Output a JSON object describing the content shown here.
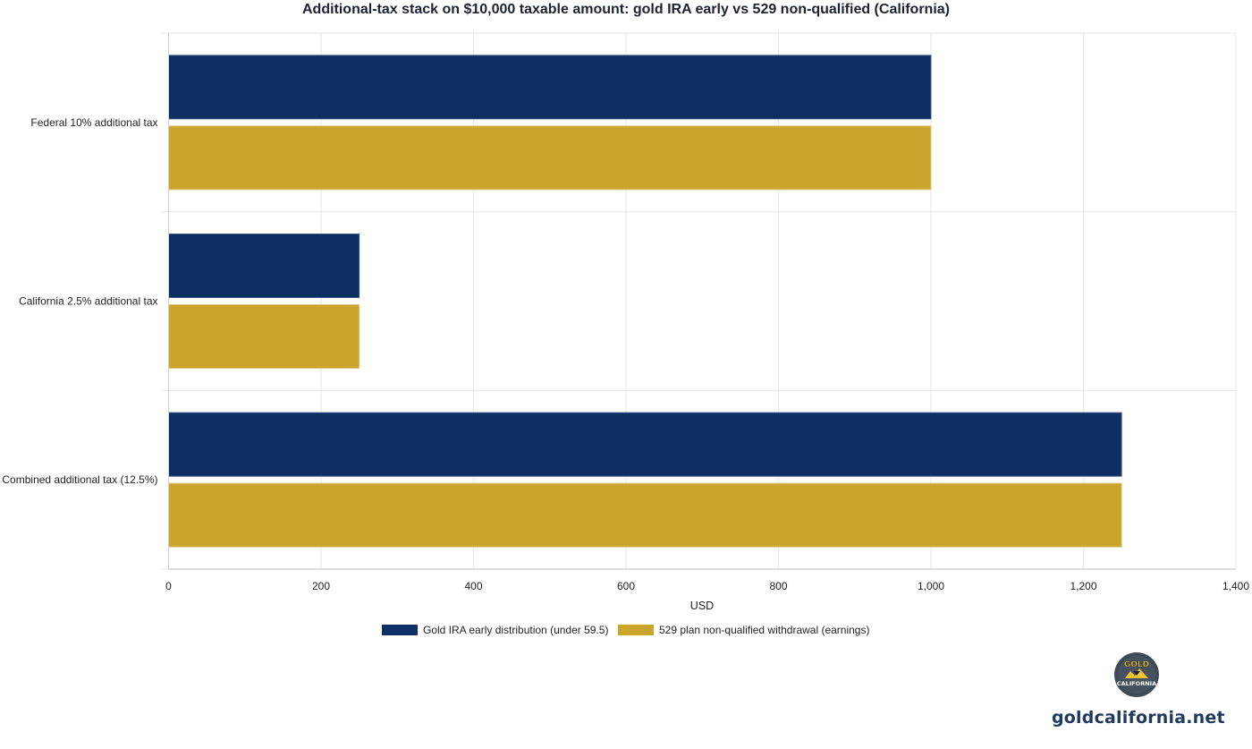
{
  "chart_data": {
    "type": "bar",
    "orientation": "horizontal",
    "title": "Additional-tax stack on $10,000 taxable amount: gold IRA early vs 529 non-qualified (California)",
    "xlabel": "USD",
    "ylabel": "",
    "categories": [
      "Federal 10% additional tax",
      "California 2.5% additional tax",
      "Combined additional tax (12.5%)"
    ],
    "series": [
      {
        "name": "Gold IRA early distribution (under 59.5)",
        "values": [
          1000,
          250,
          1250
        ],
        "color": "#0e2f63"
      },
      {
        "name": "529 plan non-qualified withdrawal (earnings)",
        "values": [
          1000,
          250,
          1250
        ],
        "color": "#cba42b"
      }
    ],
    "xlim": [
      0,
      1400
    ],
    "xticks": [
      0,
      200,
      400,
      600,
      800,
      1000,
      1200,
      1400
    ],
    "xtick_labels": [
      "0",
      "200",
      "400",
      "600",
      "800",
      "1,000",
      "1,200",
      "1,400"
    ],
    "grid": true,
    "legend_position": "bottom-center"
  },
  "brand": {
    "logo_top": "GOLD",
    "logo_bottom": "CALIFORNIA",
    "site": "goldcalifornia.net"
  },
  "colors": {
    "navy": "#0e2f63",
    "gold": "#cba42b",
    "brand_text": "#1e3a5f"
  }
}
